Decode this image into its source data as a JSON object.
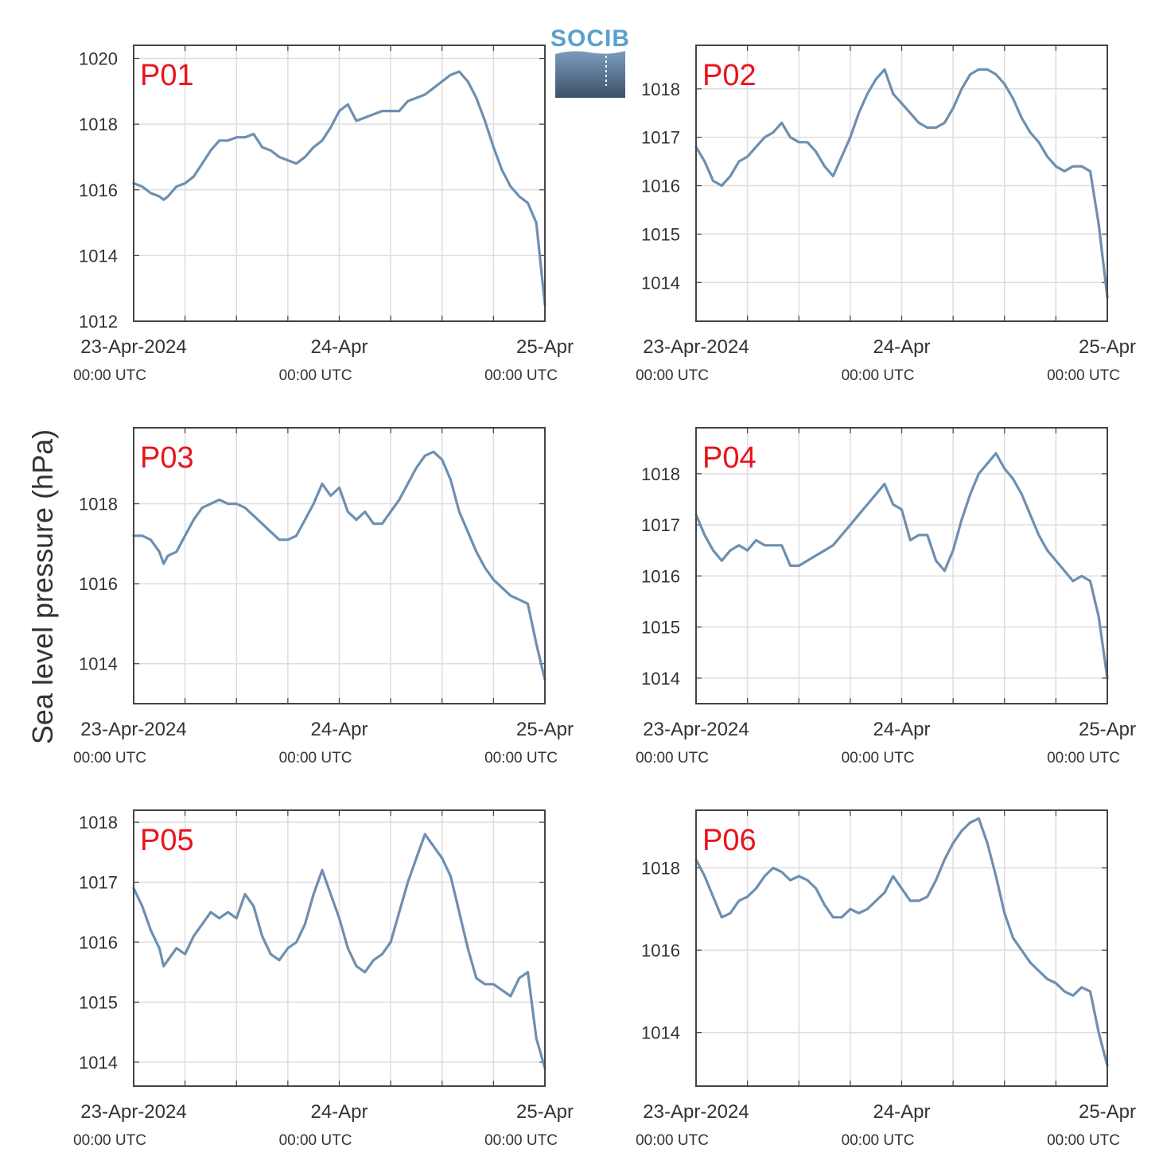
{
  "figure": {
    "ylabel": "Sea level pressure (hPa)",
    "logo_text": "SOCIB",
    "x_tick_labels": [
      "23-Apr-2024",
      "24-Apr",
      "25-Apr"
    ],
    "x_tick_sublabels": [
      "00:00 UTC",
      "00:00 UTC",
      "00:00 UTC"
    ],
    "line_color": "#6e8fb0",
    "label_color": "#e8141c"
  },
  "chart_data": [
    {
      "type": "line",
      "title": "P01",
      "xlim": [
        0,
        48
      ],
      "ylim": [
        1012,
        1020.4
      ],
      "yticks": [
        1012,
        1014,
        1016,
        1018,
        1020
      ],
      "grid": true,
      "x": [
        0,
        1,
        2,
        3,
        3.5,
        4,
        5,
        6,
        7,
        8,
        9,
        10,
        11,
        12,
        13,
        14,
        15,
        16,
        17,
        18,
        19,
        20,
        21,
        22,
        23,
        24,
        25,
        26,
        27,
        28,
        29,
        30,
        31,
        32,
        33,
        34,
        35,
        36,
        37,
        38,
        39,
        40,
        41,
        42,
        43,
        44,
        45,
        46,
        47,
        48
      ],
      "values": [
        1016.2,
        1016.1,
        1015.9,
        1015.8,
        1015.7,
        1015.8,
        1016.1,
        1016.2,
        1016.4,
        1016.8,
        1017.2,
        1017.5,
        1017.5,
        1017.6,
        1017.6,
        1017.7,
        1017.3,
        1017.2,
        1017.0,
        1016.9,
        1016.8,
        1017.0,
        1017.3,
        1017.5,
        1017.9,
        1018.4,
        1018.6,
        1018.1,
        1018.2,
        1018.3,
        1018.4,
        1018.4,
        1018.4,
        1018.7,
        1018.8,
        1018.9,
        1019.1,
        1019.3,
        1019.5,
        1019.6,
        1019.3,
        1018.8,
        1018.1,
        1017.3,
        1016.6,
        1016.1,
        1015.8,
        1015.6,
        1015.0,
        1012.5
      ]
    },
    {
      "type": "line",
      "title": "P02",
      "xlim": [
        0,
        48
      ],
      "ylim": [
        1013.2,
        1018.9
      ],
      "yticks": [
        1014,
        1015,
        1016,
        1017,
        1018
      ],
      "grid": true,
      "x": [
        0,
        1,
        2,
        3,
        4,
        5,
        6,
        7,
        8,
        9,
        10,
        11,
        12,
        13,
        14,
        15,
        16,
        17,
        18,
        19,
        20,
        21,
        22,
        23,
        24,
        25,
        26,
        27,
        28,
        29,
        30,
        31,
        32,
        33,
        34,
        35,
        36,
        37,
        38,
        39,
        40,
        41,
        42,
        43,
        44,
        45,
        46,
        47,
        48
      ],
      "values": [
        1016.8,
        1016.5,
        1016.1,
        1016.0,
        1016.2,
        1016.5,
        1016.6,
        1016.8,
        1017.0,
        1017.1,
        1017.3,
        1017.0,
        1016.9,
        1016.9,
        1016.7,
        1016.4,
        1016.2,
        1016.6,
        1017.0,
        1017.5,
        1017.9,
        1018.2,
        1018.4,
        1017.9,
        1017.7,
        1017.5,
        1017.3,
        1017.2,
        1017.2,
        1017.3,
        1017.6,
        1018.0,
        1018.3,
        1018.4,
        1018.4,
        1018.3,
        1018.1,
        1017.8,
        1017.4,
        1017.1,
        1016.9,
        1016.6,
        1016.4,
        1016.3,
        1016.4,
        1016.4,
        1016.3,
        1015.2,
        1013.7
      ]
    },
    {
      "type": "line",
      "title": "P03",
      "xlim": [
        0,
        48
      ],
      "ylim": [
        1013,
        1019.9
      ],
      "yticks": [
        1014,
        1016,
        1018
      ],
      "grid": true,
      "x": [
        0,
        1,
        2,
        3,
        3.5,
        4,
        5,
        6,
        7,
        8,
        9,
        10,
        11,
        12,
        13,
        14,
        15,
        16,
        17,
        18,
        19,
        20,
        21,
        22,
        23,
        24,
        25,
        26,
        27,
        28,
        29,
        30,
        31,
        32,
        33,
        34,
        35,
        36,
        37,
        38,
        39,
        40,
        41,
        42,
        43,
        44,
        45,
        46,
        47,
        48
      ],
      "values": [
        1017.2,
        1017.2,
        1017.1,
        1016.8,
        1016.5,
        1016.7,
        1016.8,
        1017.2,
        1017.6,
        1017.9,
        1018.0,
        1018.1,
        1018.0,
        1018.0,
        1017.9,
        1017.7,
        1017.5,
        1017.3,
        1017.1,
        1017.1,
        1017.2,
        1017.6,
        1018.0,
        1018.5,
        1018.2,
        1018.4,
        1017.8,
        1017.6,
        1017.8,
        1017.5,
        1017.5,
        1017.8,
        1018.1,
        1018.5,
        1018.9,
        1019.2,
        1019.3,
        1019.1,
        1018.6,
        1017.8,
        1017.3,
        1016.8,
        1016.4,
        1016.1,
        1015.9,
        1015.7,
        1015.6,
        1015.5,
        1014.5,
        1013.6
      ]
    },
    {
      "type": "line",
      "title": "P04",
      "xlim": [
        0,
        48
      ],
      "ylim": [
        1013.5,
        1018.9
      ],
      "yticks": [
        1014,
        1015,
        1016,
        1017,
        1018
      ],
      "grid": true,
      "x": [
        0,
        1,
        2,
        3,
        4,
        5,
        6,
        7,
        8,
        9,
        10,
        11,
        12,
        13,
        14,
        15,
        16,
        17,
        18,
        19,
        20,
        21,
        22,
        23,
        24,
        25,
        26,
        27,
        28,
        29,
        30,
        31,
        32,
        33,
        34,
        35,
        36,
        37,
        38,
        39,
        40,
        41,
        42,
        43,
        44,
        45,
        46,
        47,
        48
      ],
      "values": [
        1017.2,
        1016.8,
        1016.5,
        1016.3,
        1016.5,
        1016.6,
        1016.5,
        1016.7,
        1016.6,
        1016.6,
        1016.6,
        1016.2,
        1016.2,
        1016.3,
        1016.4,
        1016.5,
        1016.6,
        1016.8,
        1017.0,
        1017.2,
        1017.4,
        1017.6,
        1017.8,
        1017.4,
        1017.3,
        1016.7,
        1016.8,
        1016.8,
        1016.3,
        1016.1,
        1016.5,
        1017.1,
        1017.6,
        1018.0,
        1018.2,
        1018.4,
        1018.1,
        1017.9,
        1017.6,
        1017.2,
        1016.8,
        1016.5,
        1016.3,
        1016.1,
        1015.9,
        1016.0,
        1015.9,
        1015.2,
        1014.0
      ]
    },
    {
      "type": "line",
      "title": "P05",
      "xlim": [
        0,
        48
      ],
      "ylim": [
        1013.6,
        1018.2
      ],
      "yticks": [
        1014,
        1015,
        1016,
        1017,
        1018
      ],
      "grid": true,
      "x": [
        0,
        1,
        2,
        3,
        3.5,
        4,
        5,
        6,
        7,
        8,
        9,
        10,
        11,
        12,
        13,
        14,
        15,
        16,
        17,
        18,
        19,
        20,
        21,
        22,
        23,
        24,
        25,
        26,
        27,
        28,
        29,
        30,
        31,
        32,
        33,
        34,
        35,
        36,
        37,
        38,
        39,
        40,
        41,
        42,
        43,
        44,
        45,
        46,
        47,
        48
      ],
      "values": [
        1016.9,
        1016.6,
        1016.2,
        1015.9,
        1015.6,
        1015.7,
        1015.9,
        1015.8,
        1016.1,
        1016.3,
        1016.5,
        1016.4,
        1016.5,
        1016.4,
        1016.8,
        1016.6,
        1016.1,
        1015.8,
        1015.7,
        1015.9,
        1016.0,
        1016.3,
        1016.8,
        1017.2,
        1016.8,
        1016.4,
        1015.9,
        1015.6,
        1015.5,
        1015.7,
        1015.8,
        1016.0,
        1016.5,
        1017.0,
        1017.4,
        1017.8,
        1017.6,
        1017.4,
        1017.1,
        1016.5,
        1015.9,
        1015.4,
        1015.3,
        1015.3,
        1015.2,
        1015.1,
        1015.4,
        1015.5,
        1014.4,
        1013.9
      ]
    },
    {
      "type": "line",
      "title": "P06",
      "xlim": [
        0,
        48
      ],
      "ylim": [
        1012.7,
        1019.4
      ],
      "yticks": [
        1014,
        1016,
        1018
      ],
      "grid": true,
      "x": [
        0,
        1,
        2,
        3,
        4,
        5,
        6,
        7,
        8,
        9,
        10,
        11,
        12,
        13,
        14,
        15,
        16,
        17,
        18,
        19,
        20,
        21,
        22,
        23,
        24,
        25,
        26,
        27,
        28,
        29,
        30,
        31,
        32,
        33,
        34,
        35,
        36,
        37,
        38,
        39,
        40,
        41,
        42,
        43,
        44,
        45,
        46,
        47,
        48
      ],
      "values": [
        1018.2,
        1017.8,
        1017.3,
        1016.8,
        1016.9,
        1017.2,
        1017.3,
        1017.5,
        1017.8,
        1018.0,
        1017.9,
        1017.7,
        1017.8,
        1017.7,
        1017.5,
        1017.1,
        1016.8,
        1016.8,
        1017.0,
        1016.9,
        1017.0,
        1017.2,
        1017.4,
        1017.8,
        1017.5,
        1017.2,
        1017.2,
        1017.3,
        1017.7,
        1018.2,
        1018.6,
        1018.9,
        1019.1,
        1019.2,
        1018.6,
        1017.8,
        1016.9,
        1016.3,
        1016.0,
        1015.7,
        1015.5,
        1015.3,
        1015.2,
        1015.0,
        1014.9,
        1015.1,
        1015.0,
        1014.0,
        1013.2
      ]
    }
  ]
}
